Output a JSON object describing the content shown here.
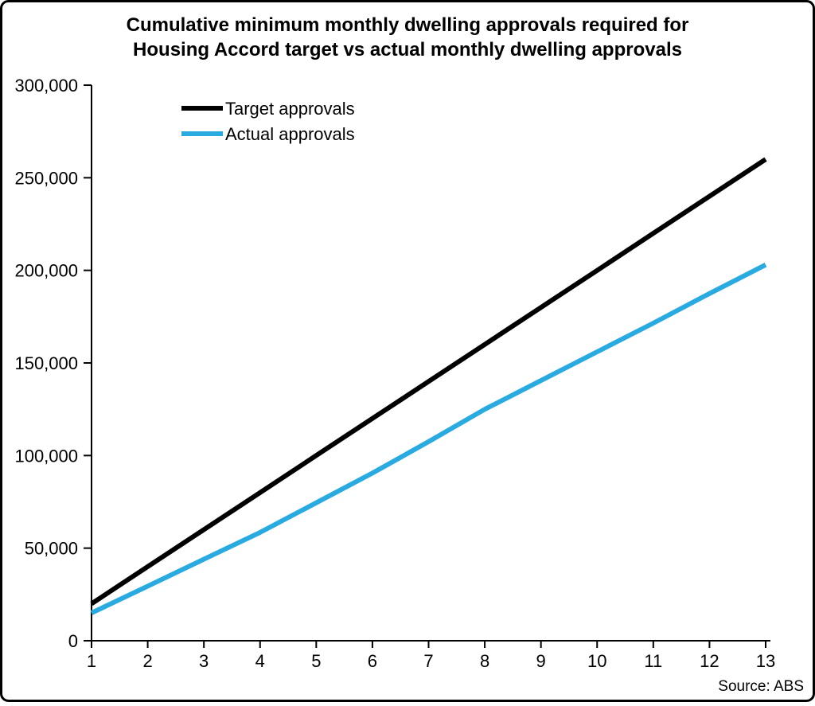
{
  "chart_data": {
    "type": "line",
    "title": "Cumulative minimum monthly dwelling approvals required for Housing Accord target vs actual monthly dwelling approvals",
    "title_lines": [
      "Cumulative minimum monthly dwelling approvals required for",
      "Housing Accord target vs actual monthly dwelling approvals"
    ],
    "x": [
      1,
      2,
      3,
      4,
      5,
      6,
      7,
      8,
      9,
      10,
      11,
      12,
      13
    ],
    "x_tick_labels": [
      "1",
      "2",
      "3",
      "4",
      "5",
      "6",
      "7",
      "8",
      "9",
      "10",
      "11",
      "12",
      "13"
    ],
    "xlim": [
      1,
      13
    ],
    "y_ticks": [
      0,
      50000,
      100000,
      150000,
      200000,
      250000,
      300000
    ],
    "y_tick_labels": [
      "0",
      "50,000",
      "100,000",
      "150,000",
      "200,000",
      "250,000",
      "300,000"
    ],
    "ylim": [
      0,
      300000
    ],
    "grid": false,
    "legend_position": "top-left",
    "series": [
      {
        "name": "Target approvals",
        "color": "#000000",
        "values": [
          20000,
          40000,
          60000,
          80000,
          100000,
          120000,
          140000,
          160000,
          180000,
          200000,
          220000,
          240000,
          260000
        ]
      },
      {
        "name": "Actual approvals",
        "color": "#29ABE2",
        "values": [
          15000,
          29500,
          44000,
          58500,
          74500,
          90500,
          107500,
          125000,
          140500,
          156000,
          171500,
          187500,
          203000
        ]
      }
    ],
    "xlabel": "",
    "ylabel": "",
    "source": "Source: ABS",
    "axis_color": "#000000",
    "background_color": "#ffffff",
    "border_color": "#000000"
  }
}
